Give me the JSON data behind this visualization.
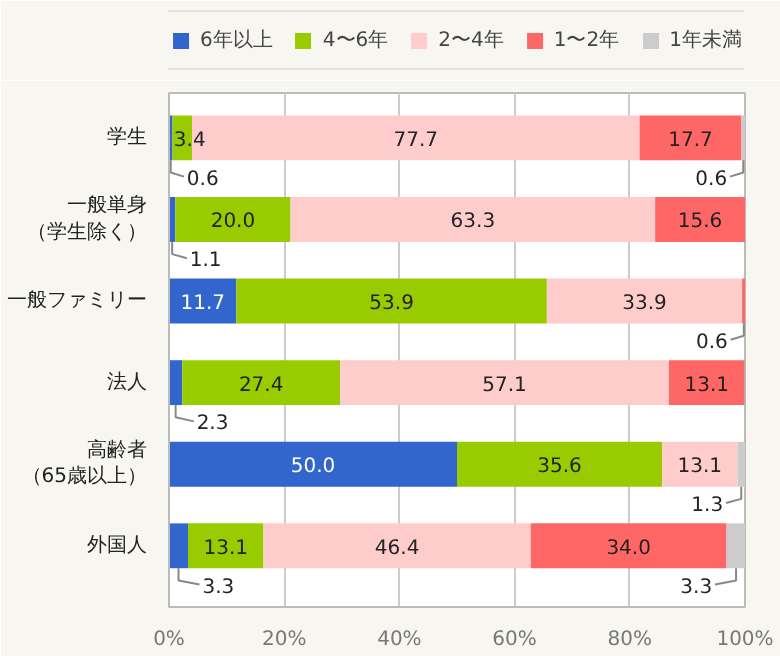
{
  "chart_data": {
    "type": "bar",
    "orientation": "horizontal",
    "stacked": true,
    "categories": [
      "学生",
      "一般単身（学生除く）",
      "一般ファミリー",
      "法人",
      "高齢者（65歳以上）",
      "外国人"
    ],
    "series": [
      {
        "name": "6年以上",
        "color": "#3366cc",
        "values": [
          0.6,
          1.1,
          11.7,
          2.3,
          50.0,
          3.3
        ],
        "value_labels": [
          "0.6",
          "1.1",
          "11.7",
          "2.3",
          "50.0",
          "3.3"
        ]
      },
      {
        "name": "4〜6年",
        "color": "#99cc00",
        "values": [
          3.4,
          20.0,
          53.9,
          27.4,
          35.6,
          13.1
        ],
        "value_labels": [
          "3.4",
          "20.0",
          "53.9",
          "27.4",
          "35.6",
          "13.1"
        ]
      },
      {
        "name": "2〜4年",
        "color": "#ffcccc",
        "values": [
          77.7,
          63.3,
          33.9,
          57.1,
          13.1,
          46.4
        ],
        "value_labels": [
          "77.7",
          "63.3",
          "33.9",
          "57.1",
          "13.1",
          "46.4"
        ]
      },
      {
        "name": "1〜2年",
        "color": "#ff6666",
        "values": [
          17.7,
          15.6,
          0.6,
          13.1,
          0,
          34.0
        ],
        "value_labels": [
          "17.7",
          "15.6",
          "0.6",
          "13.1",
          null,
          "34.0"
        ]
      },
      {
        "name": "1年未満",
        "color": "#cccccc",
        "values": [
          0.6,
          0,
          0,
          0,
          1.3,
          3.3
        ],
        "value_labels": [
          "0.6",
          null,
          null,
          null,
          "1.3",
          "3.3"
        ]
      }
    ],
    "xlim": [
      0,
      100
    ],
    "xticks": [
      {
        "value": 0,
        "label": "0%"
      },
      {
        "value": 20,
        "label": "20%"
      },
      {
        "value": 40,
        "label": "40%"
      },
      {
        "value": 60,
        "label": "60%"
      },
      {
        "value": 80,
        "label": "80%"
      },
      {
        "value": 100,
        "label": "100%"
      }
    ],
    "grid": "x",
    "legend": "top"
  }
}
